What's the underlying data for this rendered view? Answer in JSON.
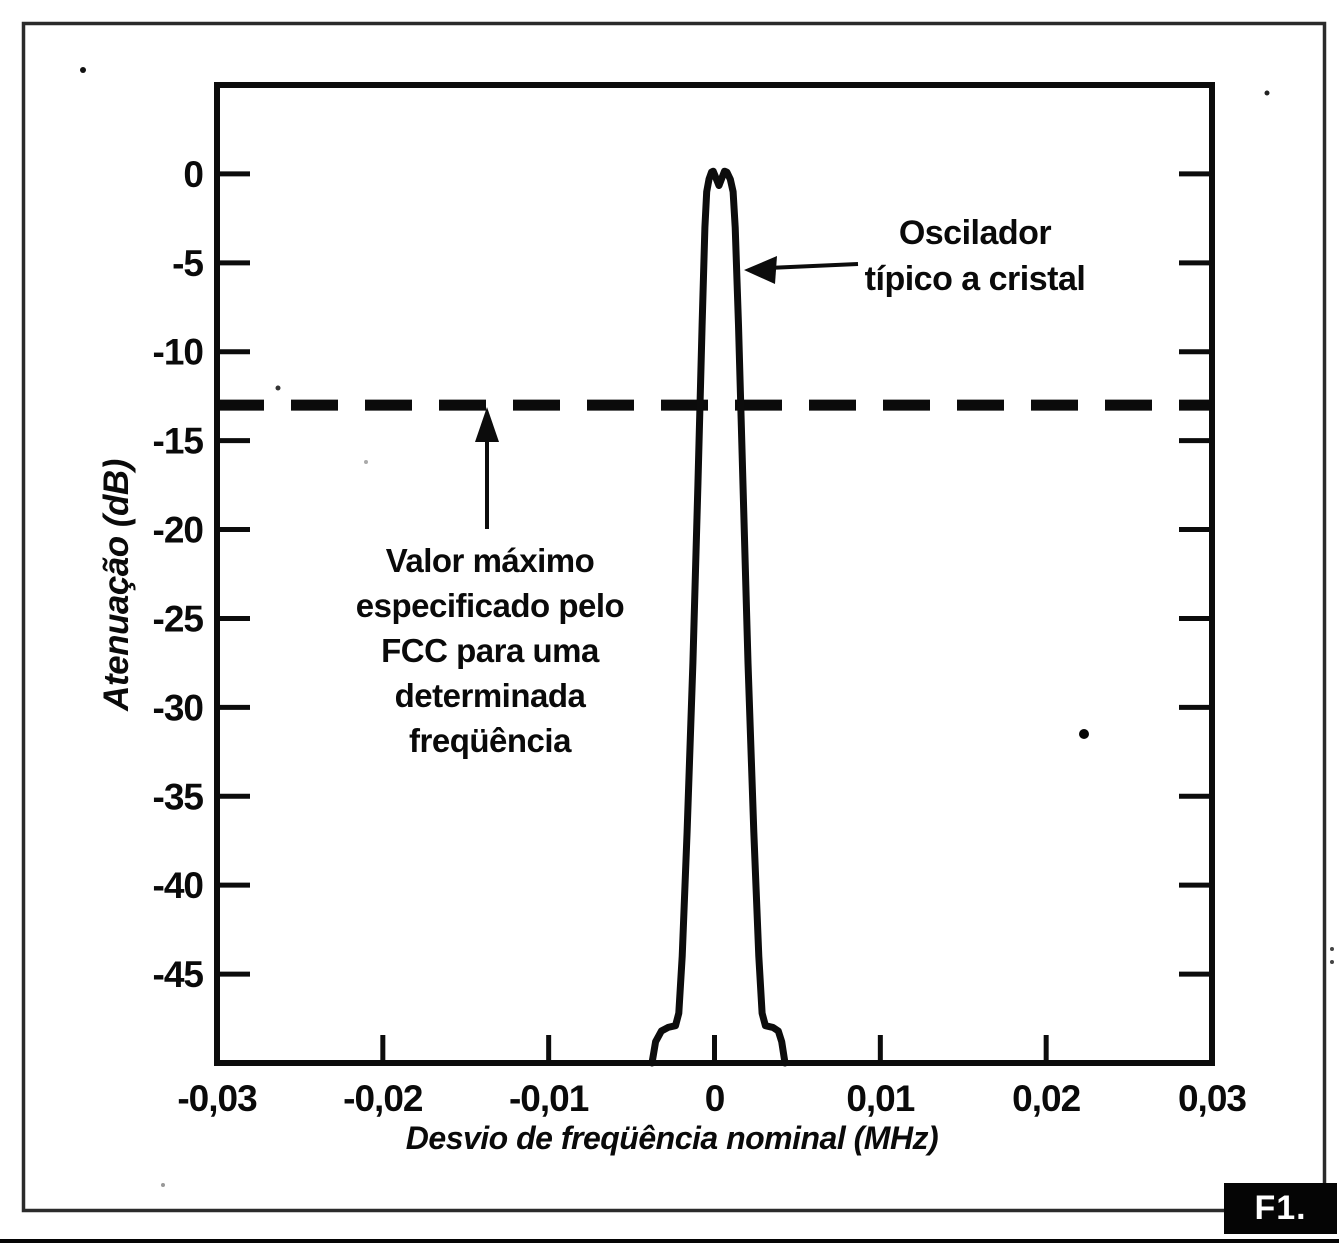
{
  "labels": {
    "figure_tag": "F1.",
    "fcc_note_lines": [
      "Valor máximo",
      "especificado pelo",
      "FCC para uma",
      "determinada",
      "freqüência"
    ],
    "oscillator_note_lines": [
      "Oscilador",
      "típico a cristal"
    ]
  },
  "chart_data": {
    "type": "line",
    "title": "",
    "xlabel": "Desvio de freqüência nominal (MHz)",
    "ylabel": "Atenuação (dB)",
    "xlim": [
      -0.03,
      0.03
    ],
    "ylim": [
      -50,
      5
    ],
    "grid": false,
    "legend_position": "none",
    "x_ticks": [
      -0.03,
      -0.02,
      -0.01,
      0,
      0.01,
      0.02,
      0.03
    ],
    "x_tick_labels": [
      "-0,03",
      "-0,02",
      "-0,01",
      "0",
      "0,01",
      "0,02",
      "0,03"
    ],
    "y_ticks": [
      0,
      -5,
      -10,
      -15,
      -20,
      -25,
      -30,
      -35,
      -40,
      -45
    ],
    "y_tick_labels": [
      "0",
      "-5",
      "-10",
      "-15",
      "-20",
      "-25",
      "-30",
      "-35",
      "-40",
      "-45"
    ],
    "series": [
      {
        "name": "Oscilador típico a cristal",
        "style": "solid",
        "points": [
          [
            -0.00377,
            -50
          ],
          [
            -0.00355,
            -48.8
          ],
          [
            -0.0032,
            -48.2
          ],
          [
            -0.0028,
            -48.0
          ],
          [
            -0.00235,
            -47.9
          ],
          [
            -0.00215,
            -47.2
          ],
          [
            -0.00195,
            -44.0
          ],
          [
            -0.00165,
            -37.0
          ],
          [
            -0.0013,
            -27.5
          ],
          [
            -0.001,
            -17.5
          ],
          [
            -0.00075,
            -8.5
          ],
          [
            -0.00058,
            -3.0
          ],
          [
            -0.00047,
            -1.0
          ],
          [
            -0.00033,
            -0.3
          ],
          [
            -0.00018,
            0.1
          ],
          [
            -8e-05,
            0.15
          ],
          [
            0.00027,
            -0.65
          ],
          [
            0.0006,
            0.15
          ],
          [
            0.00075,
            0.1
          ],
          [
            0.00095,
            -0.3
          ],
          [
            0.00112,
            -1.0
          ],
          [
            0.00125,
            -3.0
          ],
          [
            0.00145,
            -8.5
          ],
          [
            0.00172,
            -17.5
          ],
          [
            0.00202,
            -27.5
          ],
          [
            0.00237,
            -37.0
          ],
          [
            0.00267,
            -44.0
          ],
          [
            0.00287,
            -47.2
          ],
          [
            0.00307,
            -47.9
          ],
          [
            0.00352,
            -48.0
          ],
          [
            0.00385,
            -48.2
          ],
          [
            0.00405,
            -48.8
          ],
          [
            0.00425,
            -50
          ]
        ]
      },
      {
        "name": "Valor máximo especificado pelo FCC",
        "style": "dashed",
        "points": [
          [
            -0.03,
            -13
          ],
          [
            0.03,
            -13
          ]
        ]
      }
    ],
    "annotations": [
      {
        "text": "Oscilador típico a cristal",
        "arrow_to_xy": [
          0.0018,
          -5.4
        ]
      },
      {
        "text": "Valor máximo especificado pelo FCC para uma determinada freqüência",
        "arrow_to_xy": [
          -0.0137,
          -13
        ]
      }
    ]
  }
}
